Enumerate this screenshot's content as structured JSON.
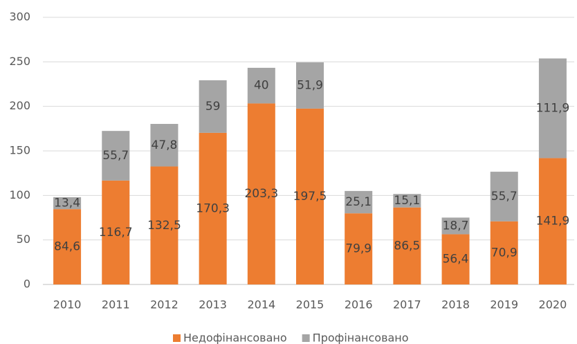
{
  "chart_data": {
    "type": "stacked-bar",
    "categories": [
      "2010",
      "2011",
      "2012",
      "2013",
      "2014",
      "2015",
      "2016",
      "2017",
      "2018",
      "2019",
      "2020"
    ],
    "series": [
      {
        "name": "Недофінансовано",
        "color": "#ed7d31",
        "values": [
          84.6,
          116.7,
          132.5,
          170.3,
          203.3,
          197.5,
          79.9,
          86.5,
          56.4,
          70.9,
          141.9
        ],
        "value_labels": [
          "84,6",
          "116,7",
          "132,5",
          "170,3",
          "203,3",
          "197,5",
          "79,9",
          "86,5",
          "56,4",
          "70,9",
          "141,9"
        ]
      },
      {
        "name": "Профінансовано",
        "color": "#a5a5a5",
        "values": [
          13.4,
          55.7,
          47.8,
          59,
          40,
          51.9,
          25.1,
          15.1,
          18.7,
          55.7,
          111.9
        ],
        "value_labels": [
          "13,4",
          "55,7",
          "47,8",
          "59",
          "40",
          "51,9",
          "25,1",
          "15,1",
          "18,7",
          "55,7",
          "111,9"
        ]
      }
    ],
    "ylim": [
      0,
      300
    ],
    "yticks": [
      0,
      50,
      100,
      150,
      200,
      250,
      300
    ],
    "grid": true,
    "legend": "bottom"
  }
}
